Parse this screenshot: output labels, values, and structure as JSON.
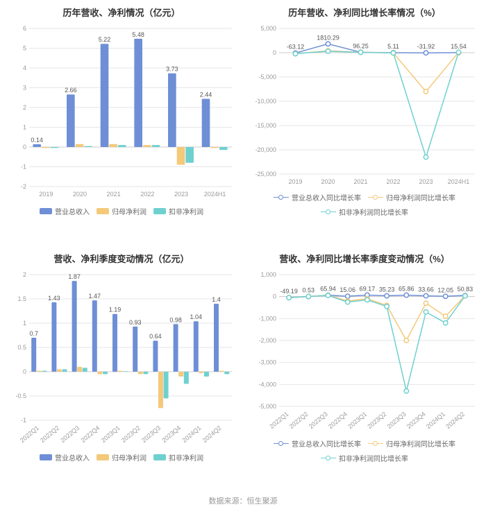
{
  "source_text": "数据来源：恒生聚源",
  "colors": {
    "series_blue": "#6e8fd6",
    "series_orange": "#f4c97a",
    "series_teal": "#6fd0d0",
    "grid": "#e6e6e6",
    "axis": "#cccccc",
    "title": "#333333",
    "tick": "#999999",
    "text": "#555555",
    "bg": "#ffffff"
  },
  "chart1": {
    "title": "历年营收、净利情况（亿元）",
    "type": "bar-grouped",
    "categories": [
      "2019",
      "2020",
      "2021",
      "2022",
      "2023",
      "2024H1"
    ],
    "ylim": [
      -2,
      6
    ],
    "ytick_step": 1,
    "series": [
      {
        "name": "营业总收入",
        "color": "#6e8fd6",
        "values": [
          0.14,
          2.66,
          5.22,
          5.48,
          3.73,
          2.44
        ],
        "show_labels": true
      },
      {
        "name": "归母净利润",
        "color": "#f4c97a",
        "values": [
          -0.05,
          0.15,
          0.15,
          0.1,
          -0.9,
          -0.05
        ],
        "show_labels": false
      },
      {
        "name": "扣非净利润",
        "color": "#6fd0d0",
        "values": [
          -0.05,
          0.05,
          0.1,
          0.1,
          -0.8,
          -0.15
        ],
        "show_labels": false
      }
    ],
    "legend": [
      "营业总收入",
      "归母净利润",
      "扣非净利润"
    ]
  },
  "chart2": {
    "title": "历年营收、净利同比增长率情况（%）",
    "type": "line",
    "categories": [
      "2019",
      "2020",
      "2021",
      "2022",
      "2023",
      "2024H1"
    ],
    "ylim": [
      -25000,
      5000
    ],
    "ytick_step": 5000,
    "series": [
      {
        "name": "营业总收入同比增长率",
        "color": "#6e8fd6",
        "values": [
          -63.12,
          1810.29,
          96.25,
          5.11,
          -31.92,
          15.54
        ],
        "show_labels": true
      },
      {
        "name": "归母净利润同比增长率",
        "color": "#f4c97a",
        "values": [
          -200,
          400,
          100,
          -50,
          -8000,
          80
        ],
        "show_labels": false
      },
      {
        "name": "扣非净利润同比增长率",
        "color": "#6fd0d0",
        "values": [
          -200,
          300,
          80,
          -60,
          -21500,
          85
        ],
        "show_labels": false
      }
    ],
    "legend": [
      "营业总收入同比增长率",
      "归母净利润同比增长率",
      "扣非净利润同比增长率"
    ]
  },
  "chart3": {
    "title": "营收、净利季度变动情况（亿元）",
    "type": "bar-grouped",
    "categories": [
      "2022Q1",
      "2022Q2",
      "2022Q3",
      "2022Q4",
      "2023Q1",
      "2023Q2",
      "2023Q3",
      "2023Q4",
      "2024Q1",
      "2024Q2"
    ],
    "ylim": [
      -1,
      2
    ],
    "ytick_step": 0.5,
    "x_rotate": true,
    "series": [
      {
        "name": "营业总收入",
        "color": "#6e8fd6",
        "values": [
          0.7,
          1.43,
          1.87,
          1.47,
          1.19,
          0.93,
          0.64,
          0.98,
          1.04,
          1.4
        ],
        "show_labels": true
      },
      {
        "name": "归母净利润",
        "color": "#f4c97a",
        "values": [
          0.02,
          0.05,
          0.1,
          -0.05,
          0.02,
          -0.05,
          -0.75,
          -0.1,
          -0.03,
          0.02
        ],
        "show_labels": false
      },
      {
        "name": "扣非净利润",
        "color": "#6fd0d0",
        "values": [
          0.02,
          0.05,
          0.08,
          -0.05,
          0.01,
          -0.05,
          -0.55,
          -0.25,
          -0.1,
          -0.05
        ],
        "show_labels": false
      }
    ],
    "legend": [
      "营业总收入",
      "归母净利润",
      "扣非净利润"
    ]
  },
  "chart4": {
    "title": "营收、净利同比增长率季度变动情况（%）",
    "type": "line",
    "categories": [
      "2022Q1",
      "2022Q2",
      "2022Q3",
      "2022Q4",
      "2023Q1",
      "2023Q2",
      "2023Q3",
      "2023Q4",
      "2024Q1",
      "2024Q2"
    ],
    "ylim": [
      -5000,
      1000
    ],
    "ytick_step": 1000,
    "x_rotate": true,
    "series": [
      {
        "name": "营业总收入同比增长率",
        "color": "#6e8fd6",
        "values": [
          -49.19,
          0.53,
          65.94,
          15.06,
          69.17,
          35.23,
          65.86,
          33.66,
          12.05,
          50.83
        ],
        "show_labels": true
      },
      {
        "name": "归母净利润同比增长率",
        "color": "#f4c97a",
        "values": [
          -50,
          10,
          60,
          -200,
          -100,
          -400,
          -2000,
          -300,
          -900,
          40
        ],
        "show_labels": false
      },
      {
        "name": "扣非净利润同比增长率",
        "color": "#6fd0d0",
        "values": [
          -50,
          5,
          50,
          -250,
          -150,
          -450,
          -4300,
          -700,
          -1200,
          30
        ],
        "show_labels": false
      }
    ],
    "legend": [
      "营业总收入同比增长率",
      "归母净利润同比增长率",
      "扣非净利润同比增长率"
    ]
  }
}
